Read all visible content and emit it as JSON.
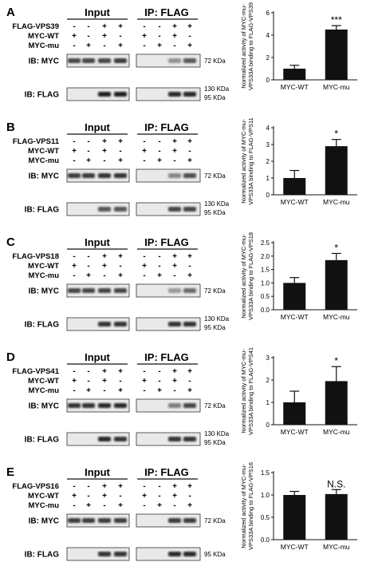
{
  "panels": [
    {
      "label": "A",
      "bait": "FLAG-VPS39",
      "input_header": "Input",
      "ip_header": "IP: FLAG",
      "rows": [
        {
          "label": "FLAG-VPS39",
          "symbols": [
            "-",
            "-",
            "+",
            "+",
            "-",
            "-",
            "+",
            "+"
          ]
        },
        {
          "label": "MYC-WT",
          "symbols": [
            "+",
            "-",
            "+",
            "-",
            "+",
            "-",
            "+",
            "-"
          ]
        },
        {
          "label": "MYC-mu",
          "symbols": [
            "-",
            "+",
            "-",
            "+",
            "-",
            "+",
            "-",
            "+"
          ]
        }
      ],
      "blots": [
        {
          "ib": "IB: MYC",
          "markers": [
            "72 KDa"
          ],
          "input_bands": [
            0.7,
            0.7,
            0.7,
            0.75
          ],
          "ip_bands": [
            0,
            0,
            0.3,
            0.6
          ]
        },
        {
          "ib": "IB: FLAG",
          "markers": [
            "130 KDa",
            "95 KDa"
          ],
          "input_bands": [
            0,
            0,
            0.9,
            0.9
          ],
          "ip_bands": [
            0,
            0,
            0.85,
            0.85
          ]
        }
      ],
      "chart_data": {
        "type": "bar",
        "categories": [
          "MYC-WT",
          "MYC-mu"
        ],
        "values": [
          1.0,
          4.5
        ],
        "errors": [
          0.3,
          0.35
        ],
        "ylabel": "Normalized activity of MYC-mu-VPS33A binding to FLAG-VPS39",
        "ylim": [
          0,
          6
        ],
        "yticks": [
          0,
          2,
          4,
          6
        ],
        "annotations": [
          "",
          "***"
        ]
      }
    },
    {
      "label": "B",
      "bait": "FLAG-VPS11",
      "input_header": "Input",
      "ip_header": "IP: FLAG",
      "rows": [
        {
          "label": "FLAG-VPS11",
          "symbols": [
            "-",
            "-",
            "+",
            "+",
            "-",
            "-",
            "+",
            "+"
          ]
        },
        {
          "label": "MYC-WT",
          "symbols": [
            "+",
            "-",
            "+",
            "-",
            "+",
            "-",
            "+",
            "-"
          ]
        },
        {
          "label": "MYC-mu",
          "symbols": [
            "-",
            "+",
            "-",
            "+",
            "-",
            "+",
            "-",
            "+"
          ]
        }
      ],
      "blots": [
        {
          "ib": "IB: MYC",
          "markers": [
            "72 KDa"
          ],
          "input_bands": [
            0.75,
            0.75,
            0.8,
            0.8
          ],
          "ip_bands": [
            0,
            0,
            0.35,
            0.65
          ]
        },
        {
          "ib": "IB: FLAG",
          "markers": [
            "130 KDa",
            "95 KDa"
          ],
          "input_bands": [
            0,
            0,
            0.6,
            0.6
          ],
          "ip_bands": [
            0,
            0,
            0.7,
            0.7
          ]
        }
      ],
      "chart_data": {
        "type": "bar",
        "categories": [
          "MYC-WT",
          "MYC-mu"
        ],
        "values": [
          1.0,
          2.9
        ],
        "errors": [
          0.45,
          0.4
        ],
        "ylabel": "Normalized activity of MYC-mu-VPS33A binding to FLAG-VPS11",
        "ylim": [
          0,
          4
        ],
        "yticks": [
          0,
          1,
          2,
          3,
          4
        ],
        "annotations": [
          "",
          "*"
        ]
      }
    },
    {
      "label": "C",
      "bait": "FLAG-VPS18",
      "input_header": "Input",
      "ip_header": "IP: FLAG",
      "rows": [
        {
          "label": "FLAG-VPS18",
          "symbols": [
            "-",
            "-",
            "+",
            "+",
            "-",
            "-",
            "+",
            "+"
          ]
        },
        {
          "label": "MYC-WT",
          "symbols": [
            "+",
            "-",
            "+",
            "-",
            "+",
            "-",
            "+",
            "-"
          ]
        },
        {
          "label": "MYC-mu",
          "symbols": [
            "-",
            "+",
            "-",
            "+",
            "-",
            "+",
            "-",
            "+"
          ]
        }
      ],
      "blots": [
        {
          "ib": "IB: MYC",
          "markers": [
            "72 KDa"
          ],
          "input_bands": [
            0.7,
            0.7,
            0.7,
            0.7
          ],
          "ip_bands": [
            0,
            0,
            0.25,
            0.5
          ]
        },
        {
          "ib": "IB: FLAG",
          "markers": [
            "130 KDa",
            "95 KDa"
          ],
          "input_bands": [
            0,
            0,
            0.8,
            0.8
          ],
          "ip_bands": [
            0,
            0,
            0.8,
            0.8
          ]
        }
      ],
      "chart_data": {
        "type": "bar",
        "categories": [
          "MYC-WT",
          "MYC-mu"
        ],
        "values": [
          1.0,
          1.85
        ],
        "errors": [
          0.2,
          0.25
        ],
        "ylabel": "Normalized activity of MYC-mu-VPS33A binding to FLAG-VPS18",
        "ylim": [
          0,
          2.5
        ],
        "yticks": [
          0.0,
          0.5,
          1.0,
          1.5,
          2.0,
          2.5
        ],
        "annotations": [
          "",
          "*"
        ]
      }
    },
    {
      "label": "D",
      "bait": "FLAG-VPS41",
      "input_header": "Input",
      "ip_header": "IP: FLAG",
      "rows": [
        {
          "label": "FLAG-VPS41",
          "symbols": [
            "-",
            "-",
            "+",
            "+",
            "-",
            "-",
            "+",
            "+"
          ]
        },
        {
          "label": "MYC-WT",
          "symbols": [
            "+",
            "-",
            "+",
            "-",
            "+",
            "-",
            "+",
            "-"
          ]
        },
        {
          "label": "MYC-mu",
          "symbols": [
            "-",
            "+",
            "-",
            "+",
            "-",
            "+",
            "-",
            "+"
          ]
        }
      ],
      "blots": [
        {
          "ib": "IB: MYC",
          "markers": [
            "72 KDa"
          ],
          "input_bands": [
            0.8,
            0.8,
            0.85,
            0.85
          ],
          "ip_bands": [
            0,
            0,
            0.4,
            0.7
          ]
        },
        {
          "ib": "IB: FLAG",
          "markers": [
            "130 KDa",
            "95 KDa"
          ],
          "input_bands": [
            0,
            0,
            0.85,
            0.8
          ],
          "ip_bands": [
            0,
            0,
            0.8,
            0.8
          ]
        }
      ],
      "chart_data": {
        "type": "bar",
        "categories": [
          "MYC-WT",
          "MYC-mu"
        ],
        "values": [
          1.0,
          1.95
        ],
        "errors": [
          0.5,
          0.65
        ],
        "ylabel": "Normalized activity of MYC-mu-VPS33A binding to FLAG-VPS41",
        "ylim": [
          0,
          3
        ],
        "yticks": [
          0,
          1,
          2,
          3
        ],
        "annotations": [
          "",
          "*"
        ]
      }
    },
    {
      "label": "E",
      "bait": "FLAG-VPS16",
      "input_header": "Input",
      "ip_header": "IP: FLAG",
      "rows": [
        {
          "label": "FLAG-VPS16",
          "symbols": [
            "-",
            "-",
            "+",
            "+",
            "-",
            "-",
            "+",
            "+"
          ]
        },
        {
          "label": "MYC-WT",
          "symbols": [
            "+",
            "-",
            "+",
            "-",
            "+",
            "-",
            "+",
            "-"
          ]
        },
        {
          "label": "MYC-mu",
          "symbols": [
            "-",
            "+",
            "-",
            "+",
            "-",
            "+",
            "-",
            "+"
          ]
        }
      ],
      "blots": [
        {
          "ib": "IB: MYC",
          "markers": [
            "72 KDa"
          ],
          "input_bands": [
            0.75,
            0.75,
            0.75,
            0.75
          ],
          "ip_bands": [
            0,
            0,
            0.75,
            0.75
          ]
        },
        {
          "ib": "IB: FLAG",
          "markers": [
            "95 KDa"
          ],
          "input_bands": [
            0,
            0,
            0.8,
            0.8
          ],
          "ip_bands": [
            0,
            0,
            0.85,
            0.85
          ]
        }
      ],
      "chart_data": {
        "type": "bar",
        "categories": [
          "MYC-WT",
          "MYC-mu"
        ],
        "values": [
          1.0,
          1.02
        ],
        "errors": [
          0.08,
          0.1
        ],
        "ylabel": "Normalized activity of MYC-mu-VPS33A binding to FLAG-VPS16",
        "ylim": [
          0,
          1.5
        ],
        "yticks": [
          0.0,
          0.5,
          1.0,
          1.5
        ],
        "annotations": [
          "",
          "N.S."
        ]
      }
    }
  ]
}
